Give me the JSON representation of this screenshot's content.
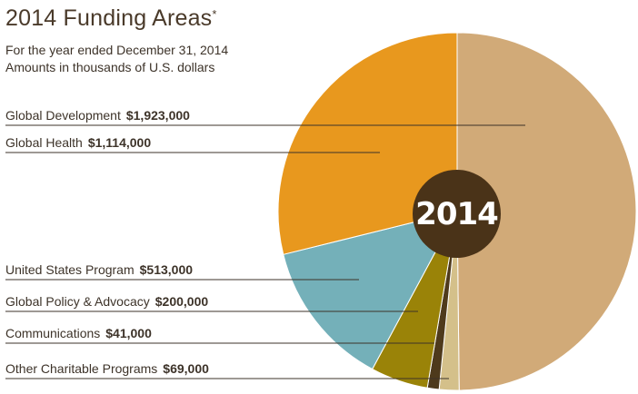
{
  "title": "2014 Funding Areas",
  "title_mark": "*",
  "subtitle_line1": "For the year ended December 31, 2014",
  "subtitle_line2": "Amounts in thousands of U.S. dollars",
  "center_label": "2014",
  "chart_data": {
    "type": "pie",
    "title": "2014 Funding Areas",
    "unit": "thousands of U.S. dollars",
    "slices": [
      {
        "label": "Global Development",
        "value_text": "$1,923,000",
        "value": 1923000,
        "color": "#d1aa78"
      },
      {
        "label": "Other Charitable Programs",
        "value_text": "$69,000",
        "value": 69000,
        "color": "#d4c08a"
      },
      {
        "label": "Communications",
        "value_text": "$41,000",
        "value": 41000,
        "color": "#4e3a1c"
      },
      {
        "label": "Global Policy & Advocacy",
        "value_text": "$200,000",
        "value": 200000,
        "color": "#9a8308"
      },
      {
        "label": "United States Program",
        "value_text": "$513,000",
        "value": 513000,
        "color": "#74b0b9"
      },
      {
        "label": "Global Health",
        "value_text": "$1,114,000",
        "value": 1114000,
        "color": "#e8981e"
      }
    ],
    "legend": [
      {
        "label": "Global Development",
        "value_text": "$1,923,000"
      },
      {
        "label": "Global Health",
        "value_text": "$1,114,000"
      },
      {
        "label": "United States Program",
        "value_text": "$513,000"
      },
      {
        "label": "Global Policy & Advocacy",
        "value_text": "$200,000"
      },
      {
        "label": "Communications",
        "value_text": "$41,000"
      },
      {
        "label": "Other Charitable Programs",
        "value_text": "$69,000"
      }
    ]
  }
}
